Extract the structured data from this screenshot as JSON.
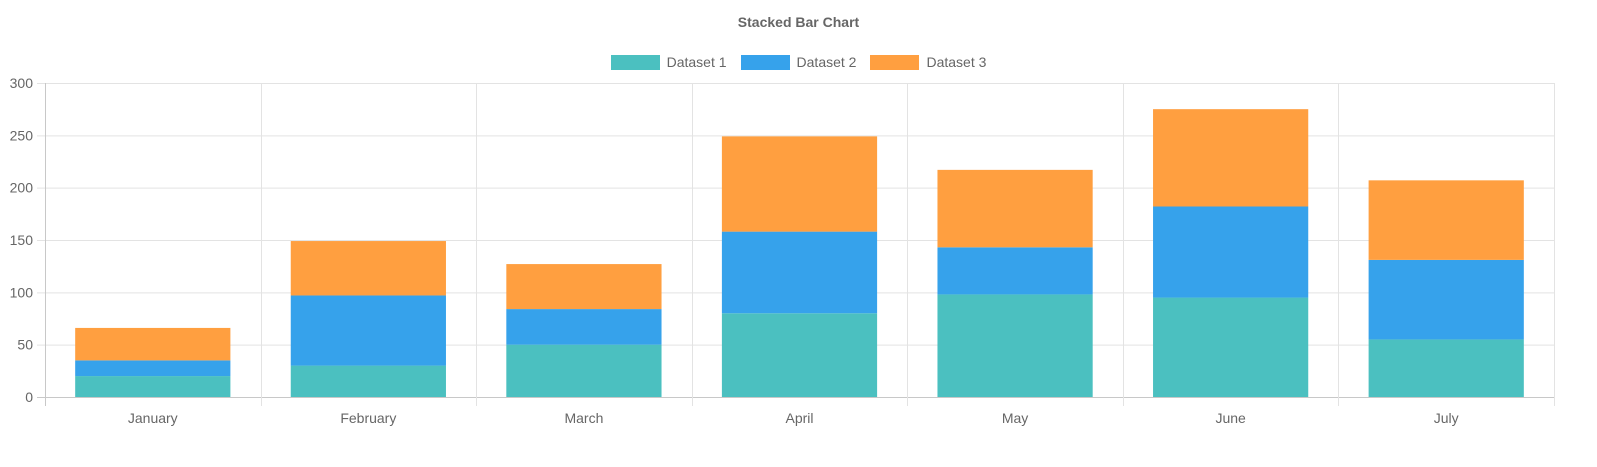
{
  "chart_data": {
    "type": "bar",
    "stacked": true,
    "title": "Stacked Bar Chart",
    "xlabel": "",
    "ylabel": "",
    "categories": [
      "January",
      "February",
      "March",
      "April",
      "May",
      "June",
      "July"
    ],
    "series": [
      {
        "name": "Dataset 1",
        "color": "#4bc0c0",
        "values": [
          20,
          30,
          50,
          80,
          98,
          95,
          55
        ]
      },
      {
        "name": "Dataset 2",
        "color": "#36a2eb",
        "values": [
          15,
          67,
          34,
          78,
          45,
          87,
          76
        ]
      },
      {
        "name": "Dataset 3",
        "color": "#ff9f40",
        "values": [
          31,
          52,
          43,
          91,
          74,
          93,
          76
        ]
      }
    ],
    "ylim": [
      0,
      300
    ],
    "yticks": [
      0,
      50,
      100,
      150,
      200,
      250,
      300
    ],
    "grid": true,
    "legend_position": "top-center"
  }
}
